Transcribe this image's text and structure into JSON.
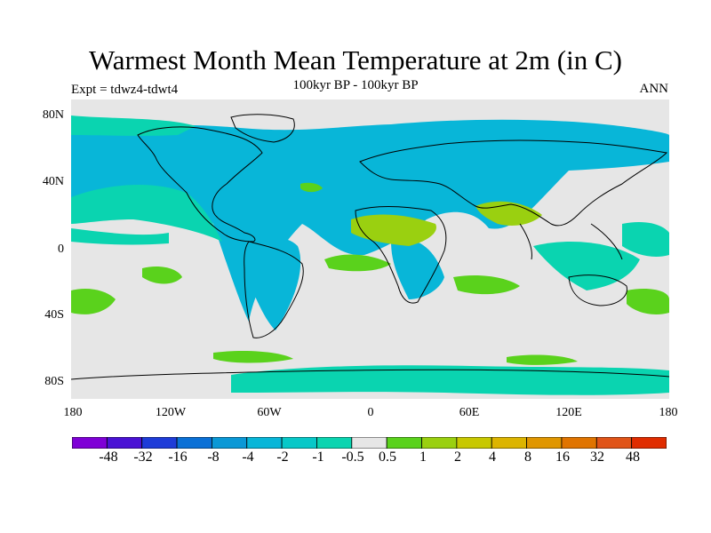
{
  "header": {
    "title": "Warmest Month Mean Temperature at 2m (in C)",
    "subtitle": "100kyr BP - 100kyr BP",
    "experiment": "Expt = tdwz4-tdwt4",
    "period": "ANN"
  },
  "axes": {
    "y_labels": [
      "80N",
      "40N",
      "0",
      "40S",
      "80S"
    ],
    "x_labels": [
      "180",
      "120W",
      "60W",
      "0",
      "60E",
      "120E",
      "180"
    ]
  },
  "colorbar": {
    "colors": [
      "#7f00d6",
      "#4a12d4",
      "#1e3cd8",
      "#0a70d6",
      "#0a98d6",
      "#08b6d8",
      "#07c8c8",
      "#0ad4b0",
      "#e6e6e6",
      "#5ad21c",
      "#9ad010",
      "#c8c800",
      "#dcb400",
      "#e09600",
      "#e07400",
      "#e05418",
      "#e02c00"
    ],
    "labels": [
      "-48",
      "-32",
      "-16",
      "-8",
      "-4",
      "-2",
      "-1",
      "-0.5",
      "0.5",
      "1",
      "2",
      "4",
      "8",
      "16",
      "32",
      "48"
    ]
  },
  "map_colors": {
    "neutral": "#e6e6e6",
    "cool": "#08b6d8",
    "cool_light": "#0ad4b0",
    "warm_green": "#5ad21c",
    "warm_yellow": "#9ad010",
    "coast": "#000000"
  }
}
